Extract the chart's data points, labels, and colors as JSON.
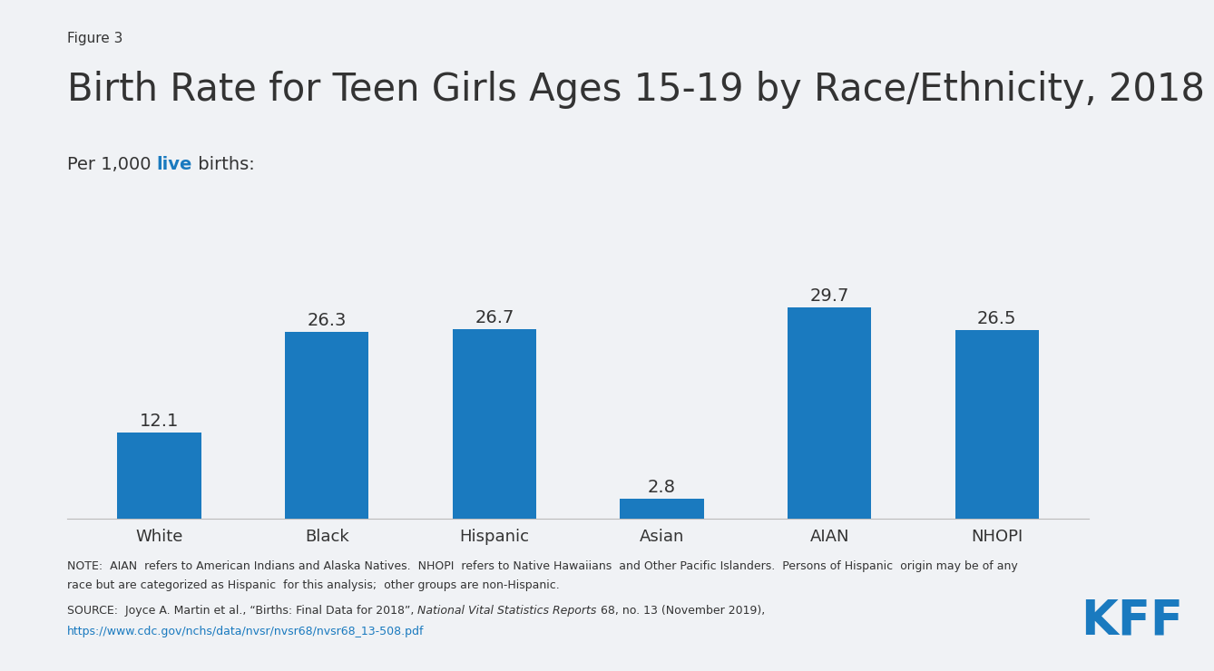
{
  "figure_label": "Figure 3",
  "title": "Birth Rate for Teen Girls Ages 15-19 by Race/Ethnicity, 2018",
  "subtitle_part1": "Per 1,000 ",
  "subtitle_live": "live",
  "subtitle_part2": " births:",
  "categories": [
    "White",
    "Black",
    "Hispanic",
    "Asian",
    "AIAN",
    "NHOPI"
  ],
  "values": [
    12.1,
    26.3,
    26.7,
    2.8,
    29.7,
    26.5
  ],
  "bar_color": "#1a7abf",
  "background_color": "#f0f2f5",
  "text_color": "#333333",
  "note_line1": "NOTE:  AIAN  refers to American Indians and Alaska Natives.  NHOPI  refers to Native Hawaiians  and Other Pacific Islanders.  Persons of Hispanic  origin may be of any",
  "note_line2": "race but are categorized as Hispanic  for this analysis;  other groups are non-Hispanic.",
  "source_text": "SOURCE:  Joyce A. Martin et al., “Births: Final Data for 2018”, ",
  "source_italic": "National Vital Statistics Reports",
  "source_text2": " 68, no. 13 (November 2019),",
  "source_url": "https://www.cdc.gov/nchs/data/nvsr/nvsr68/nvsr68_13-508.pdf",
  "kff_color": "#1a7abf",
  "ylim": [
    0,
    35
  ],
  "figure_label_fontsize": 11,
  "title_fontsize": 30,
  "subtitle_fontsize": 14,
  "bar_label_fontsize": 14,
  "category_label_fontsize": 13,
  "note_fontsize": 9,
  "source_fontsize": 9
}
